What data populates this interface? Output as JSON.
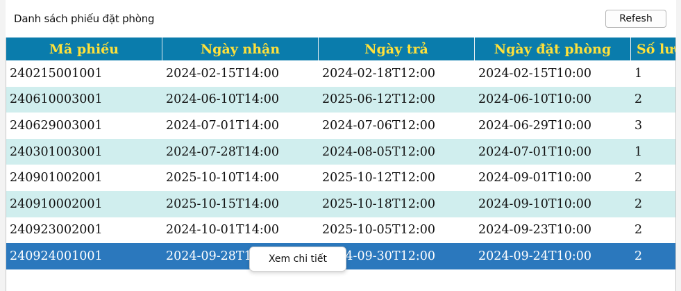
{
  "header": {
    "title": "Danh sách phiếu đặt phòng",
    "refresh_label": "Refesh"
  },
  "table": {
    "columns": [
      "Mã phiếu",
      "Ngày nhận",
      "Ngày trả",
      "Ngày đặt phòng",
      "Số lượ"
    ],
    "rows": [
      [
        "240215001001",
        "2024-02-15T14:00",
        "2024-02-18T12:00",
        "2024-02-15T10:00",
        "1"
      ],
      [
        "240610003001",
        "2024-06-10T14:00",
        "2025-06-12T12:00",
        "2024-06-10T10:00",
        "2"
      ],
      [
        "240629003001",
        "2024-07-01T14:00",
        "2024-07-06T12:00",
        "2024-06-29T10:00",
        "3"
      ],
      [
        "240301003001",
        "2024-07-28T14:00",
        "2024-08-05T12:00",
        "2024-07-01T10:00",
        "1"
      ],
      [
        "240901002001",
        "2025-10-10T14:00",
        "2025-10-12T12:00",
        "2024-09-01T10:00",
        "2"
      ],
      [
        "240910002001",
        "2025-10-15T14:00",
        "2025-10-18T12:00",
        "2024-09-10T10:00",
        "2"
      ],
      [
        "240923002001",
        "2024-10-01T14:00",
        "2025-10-05T12:00",
        "2024-09-23T10:00",
        "2"
      ],
      [
        "240924001001",
        "2024-09-28T14:00",
        "2024-09-30T12:00",
        "2024-09-24T10:00",
        "2"
      ]
    ],
    "selected_row": 7
  },
  "context_menu": {
    "item_label": "Xem chi tiết"
  },
  "colors": {
    "header_bg": "#0a7cac",
    "header_text": "#ffe13a",
    "row_alt": "#d0eeee",
    "row_selected": "#2b78bd"
  }
}
